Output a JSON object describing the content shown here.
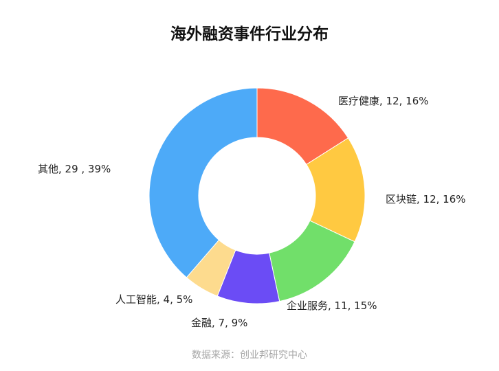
{
  "chart_data": {
    "type": "pie",
    "title": "海外融资事件行业分布",
    "source": "数据来源：创业邦研究中心",
    "slices": [
      {
        "category": "医疗健康",
        "value": 12,
        "percent": 16,
        "label": "医疗健康, 12, 16%",
        "color": "#fe6a4c"
      },
      {
        "category": "区块链",
        "value": 12,
        "percent": 16,
        "label": "区块链, 12, 16%",
        "color": "#ffc941"
      },
      {
        "category": "企业服务",
        "value": 11,
        "percent": 15,
        "label": "企业服务, 11, 15%",
        "color": "#71df6a"
      },
      {
        "category": "金融",
        "value": 7,
        "percent": 9,
        "label": "金融, 7, 9%",
        "color": "#6b4cf5"
      },
      {
        "category": "人工智能",
        "value": 4,
        "percent": 5,
        "label": "人工智能, 4, 5%",
        "color": "#fddb8e"
      },
      {
        "category": "其他",
        "value": 29,
        "percent": 39,
        "label": "其他,  29 , 39%",
        "color": "#4daaf8"
      }
    ]
  }
}
